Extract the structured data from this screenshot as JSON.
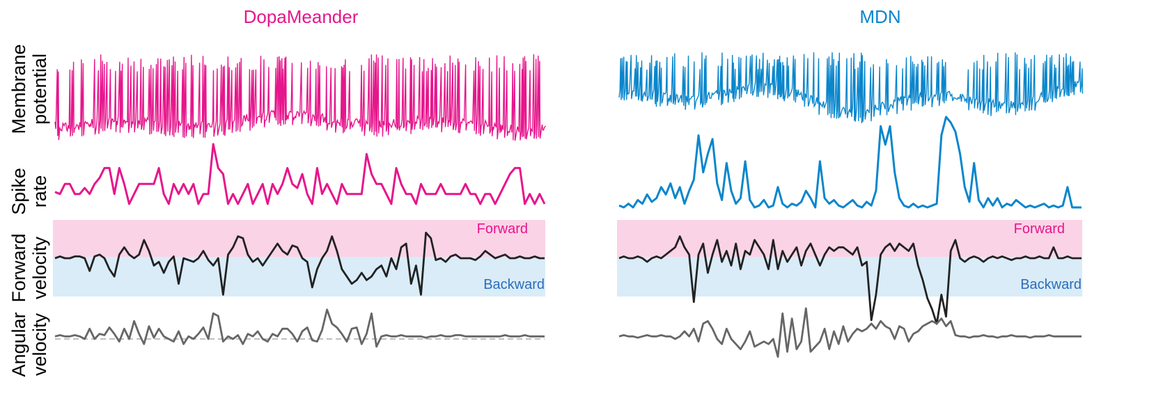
{
  "chart_data": [
    {
      "type": "line",
      "title": "DopaMeander",
      "color": "#e6168c",
      "row_labels": [
        [
          "Membrane",
          "potential"
        ],
        [
          "Spike",
          "rate"
        ],
        [
          "Forward",
          "velocity"
        ],
        [
          "Angular",
          "velocity"
        ]
      ],
      "band_labels": {
        "top": "Forward",
        "bottom": "Backward"
      },
      "band_colors": {
        "top": "#fbd3e6",
        "bottom": "#d9ecf8",
        "top_text": "#e6168c",
        "bottom_text": "#2c6db9"
      },
      "trace_colors": {
        "forward_velocity": "#222222",
        "angular_velocity": "#666666",
        "angular_zero_line": "#999999"
      },
      "n_points": 100,
      "spike_rate": [
        2.6,
        2.5,
        3.0,
        3.0,
        2.5,
        2.5,
        2.8,
        2.5,
        3.0,
        3.3,
        3.8,
        3.8,
        2.5,
        3.8,
        3.0,
        2.0,
        2.5,
        3.0,
        3.0,
        3.0,
        3.0,
        3.8,
        2.5,
        2.0,
        3.0,
        2.5,
        3.0,
        2.5,
        3.0,
        2.0,
        2.5,
        2.5,
        5.0,
        3.8,
        3.5,
        2.0,
        2.5,
        2.0,
        2.5,
        3.0,
        2.0,
        2.5,
        3.0,
        2.0,
        3.0,
        2.5,
        3.0,
        3.8,
        3.0,
        2.8,
        3.5,
        2.5,
        2.0,
        3.8,
        2.5,
        3.0,
        2.5,
        2.0,
        3.0,
        2.5,
        2.5,
        2.5,
        2.5,
        4.5,
        3.5,
        3.0,
        3.0,
        2.5,
        2.0,
        3.8,
        3.0,
        2.5,
        2.5,
        2.0,
        3.0,
        2.5,
        2.5,
        2.5,
        3.0,
        2.5,
        2.5,
        2.5,
        2.5,
        3.0,
        2.5,
        2.5,
        2.0,
        2.5,
        2.5,
        2.0,
        2.5,
        3.0,
        3.5,
        3.8,
        3.8,
        2.0,
        2.5,
        2.0,
        2.5,
        2.0
      ],
      "forward_velocity": [
        0,
        0.05,
        0,
        0,
        0.05,
        0.05,
        0,
        -0.35,
        0.05,
        0.1,
        0,
        -0.3,
        -0.5,
        0.1,
        0.3,
        0.1,
        0,
        0.1,
        0.5,
        0.2,
        -0.2,
        -0.1,
        -0.4,
        -0.1,
        0.05,
        -0.7,
        0,
        -0.05,
        -0.1,
        0,
        0.2,
        -0.05,
        -0.2,
        0,
        -1.0,
        0.1,
        0.3,
        0.6,
        0.55,
        0.1,
        -0.1,
        0,
        -0.2,
        0,
        0.2,
        0.4,
        0.2,
        0.1,
        0.35,
        0.3,
        0,
        -0.1,
        -0.8,
        -0.3,
        0,
        0.2,
        0.6,
        0.2,
        -0.3,
        -0.5,
        -0.7,
        -0.6,
        -0.4,
        -0.6,
        -0.5,
        -0.3,
        -0.2,
        -0.5,
        0,
        -0.3,
        0.3,
        0.4,
        -0.7,
        -0.2,
        -1.0,
        0.7,
        0.55,
        -0.05,
        0,
        -0.1,
        0.05,
        0.1,
        0,
        0,
        0,
        -0.05,
        0.05,
        0.2,
        0.1,
        0,
        0.05,
        0.1,
        0,
        0,
        0.05,
        0,
        0,
        0.05,
        0,
        0
      ],
      "angular_velocity": [
        0,
        0.05,
        0,
        0,
        0.05,
        0,
        -0.1,
        0.3,
        -0.1,
        0.1,
        0.05,
        0.35,
        0.1,
        -0.2,
        0.3,
        -0.1,
        0.6,
        0.1,
        -0.3,
        0.4,
        -0.05,
        0.3,
        0,
        -0.1,
        -0.2,
        0.2,
        -0.3,
        0,
        -0.1,
        0.1,
        0.35,
        -0.1,
        0.9,
        0.8,
        -0.2,
        0,
        -0.1,
        0.05,
        -0.3,
        0.1,
        0,
        0.2,
        -0.1,
        -0.2,
        0.1,
        0,
        0.3,
        0.3,
        0.1,
        -0.2,
        0.2,
        0.35,
        -0.15,
        -0.2,
        0.25,
        1.05,
        0.5,
        0.35,
        0.1,
        -0.2,
        0.3,
        0.35,
        -0.3,
        0.1,
        0.9,
        -0.4,
        0,
        0.05,
        0,
        0,
        0.05,
        0,
        0,
        0,
        0,
        -0.05,
        0,
        0,
        0.05,
        0,
        0,
        0.05,
        0.05,
        0,
        0,
        0,
        0,
        0,
        0,
        0,
        0,
        0.05,
        0,
        0,
        0,
        0.05,
        0,
        0,
        0,
        0
      ]
    },
    {
      "type": "line",
      "title": "MDN",
      "color": "#0a86cc",
      "row_labels": [],
      "band_labels": {
        "top": "Forward",
        "bottom": "Backward"
      },
      "band_colors": {
        "top": "#fbd3e6",
        "bottom": "#d9ecf8",
        "top_text": "#e6168c",
        "bottom_text": "#2c6db9"
      },
      "trace_colors": {
        "forward_velocity": "#222222",
        "angular_velocity": "#666666"
      },
      "n_points": 100,
      "spike_rate": [
        0.2,
        0.1,
        0.3,
        0.1,
        0.5,
        0.3,
        0.8,
        0.4,
        0.6,
        1.2,
        0.8,
        1.4,
        0.6,
        1.2,
        0.3,
        1.0,
        1.6,
        4.0,
        2.0,
        3.0,
        3.8,
        1.4,
        0.5,
        2.5,
        1.0,
        0.3,
        0.6,
        2.6,
        0.5,
        0.1,
        0.2,
        0.5,
        0.1,
        0.2,
        1.2,
        0.3,
        0.1,
        0.3,
        0.2,
        0.4,
        1.0,
        0.6,
        0.1,
        2.6,
        0.6,
        0.3,
        0.5,
        0.2,
        0.1,
        0.3,
        0.5,
        0.2,
        0.1,
        0.4,
        0.2,
        1.0,
        4.5,
        3.5,
        4.5,
        2.0,
        0.6,
        0.2,
        0.1,
        0.3,
        0.1,
        0.2,
        0.1,
        0.2,
        0.3,
        4.0,
        5.0,
        4.7,
        4.2,
        3.0,
        1.2,
        0.4,
        2.5,
        0.5,
        0.1,
        0.6,
        0.2,
        0.6,
        0.1,
        0.3,
        0.2,
        0.5,
        0.3,
        0.1,
        0.2,
        0.1,
        0.2,
        0.3,
        0.1,
        0.2,
        0.1,
        0.2,
        1.2,
        0.1,
        0.1,
        0.1
      ],
      "forward_velocity": [
        0,
        0.05,
        0,
        0,
        0.05,
        0,
        -0.1,
        0,
        0.05,
        0,
        0.1,
        0.2,
        0.3,
        0.6,
        0.3,
        0.1,
        -1.2,
        0.1,
        0.4,
        -0.4,
        0.1,
        0.5,
        -0.1,
        0.2,
        -0.2,
        0.4,
        -0.3,
        0.2,
        0.1,
        0.5,
        0.3,
        0.1,
        -0.3,
        0.5,
        -0.3,
        0.2,
        -0.1,
        0.1,
        0.3,
        -0.2,
        0.2,
        0.4,
        0.1,
        -0.2,
        0.1,
        0.3,
        0.2,
        0.3,
        0.3,
        0.2,
        0.1,
        0.3,
        -0.2,
        -0.1,
        -1.7,
        -1.0,
        0.1,
        0.3,
        0.4,
        0.2,
        0.4,
        0.3,
        0.2,
        0.4,
        -0.2,
        -0.6,
        -1.1,
        -1.4,
        -1.8,
        -1.0,
        -1.6,
        0.2,
        0.5,
        0,
        -0.1,
        0,
        0.05,
        0,
        -0.1,
        0,
        0.05,
        0,
        0.05,
        0,
        -0.05,
        0,
        0,
        0.05,
        0,
        0,
        0.05,
        0,
        0,
        0.3,
        0,
        0,
        0.05,
        0,
        0,
        0
      ],
      "angular_velocity": [
        0,
        0.05,
        0,
        0,
        -0.05,
        0,
        0.05,
        0,
        0,
        0.05,
        0,
        0,
        -0.1,
        0,
        0.2,
        0,
        0.3,
        -0.2,
        0.5,
        0.6,
        0.3,
        -0.1,
        -0.3,
        0.3,
        -0.1,
        -0.3,
        -0.5,
        -0.2,
        0.2,
        -0.4,
        -0.3,
        -0.2,
        -0.3,
        -0.1,
        -0.8,
        0.9,
        -0.6,
        0.7,
        -0.5,
        -0.2,
        1.1,
        -0.6,
        -0.4,
        -0.2,
        0.3,
        -0.5,
        0.2,
        -0.3,
        0.4,
        -0.2,
        0.1,
        0.3,
        0.2,
        0.3,
        0.5,
        0.3,
        0.6,
        0.4,
        0.3,
        -0.1,
        0.4,
        0.3,
        -0.2,
        0.1,
        0.2,
        0.4,
        0.5,
        0.6,
        0.5,
        0.7,
        0.4,
        0.6,
        0.05,
        0,
        0,
        -0.05,
        0,
        0,
        0.05,
        0,
        0,
        -0.05,
        0,
        0,
        0.05,
        0,
        0,
        0,
        -0.05,
        0,
        0,
        0,
        0.05,
        0,
        0,
        0,
        0,
        0,
        0,
        0
      ]
    }
  ]
}
